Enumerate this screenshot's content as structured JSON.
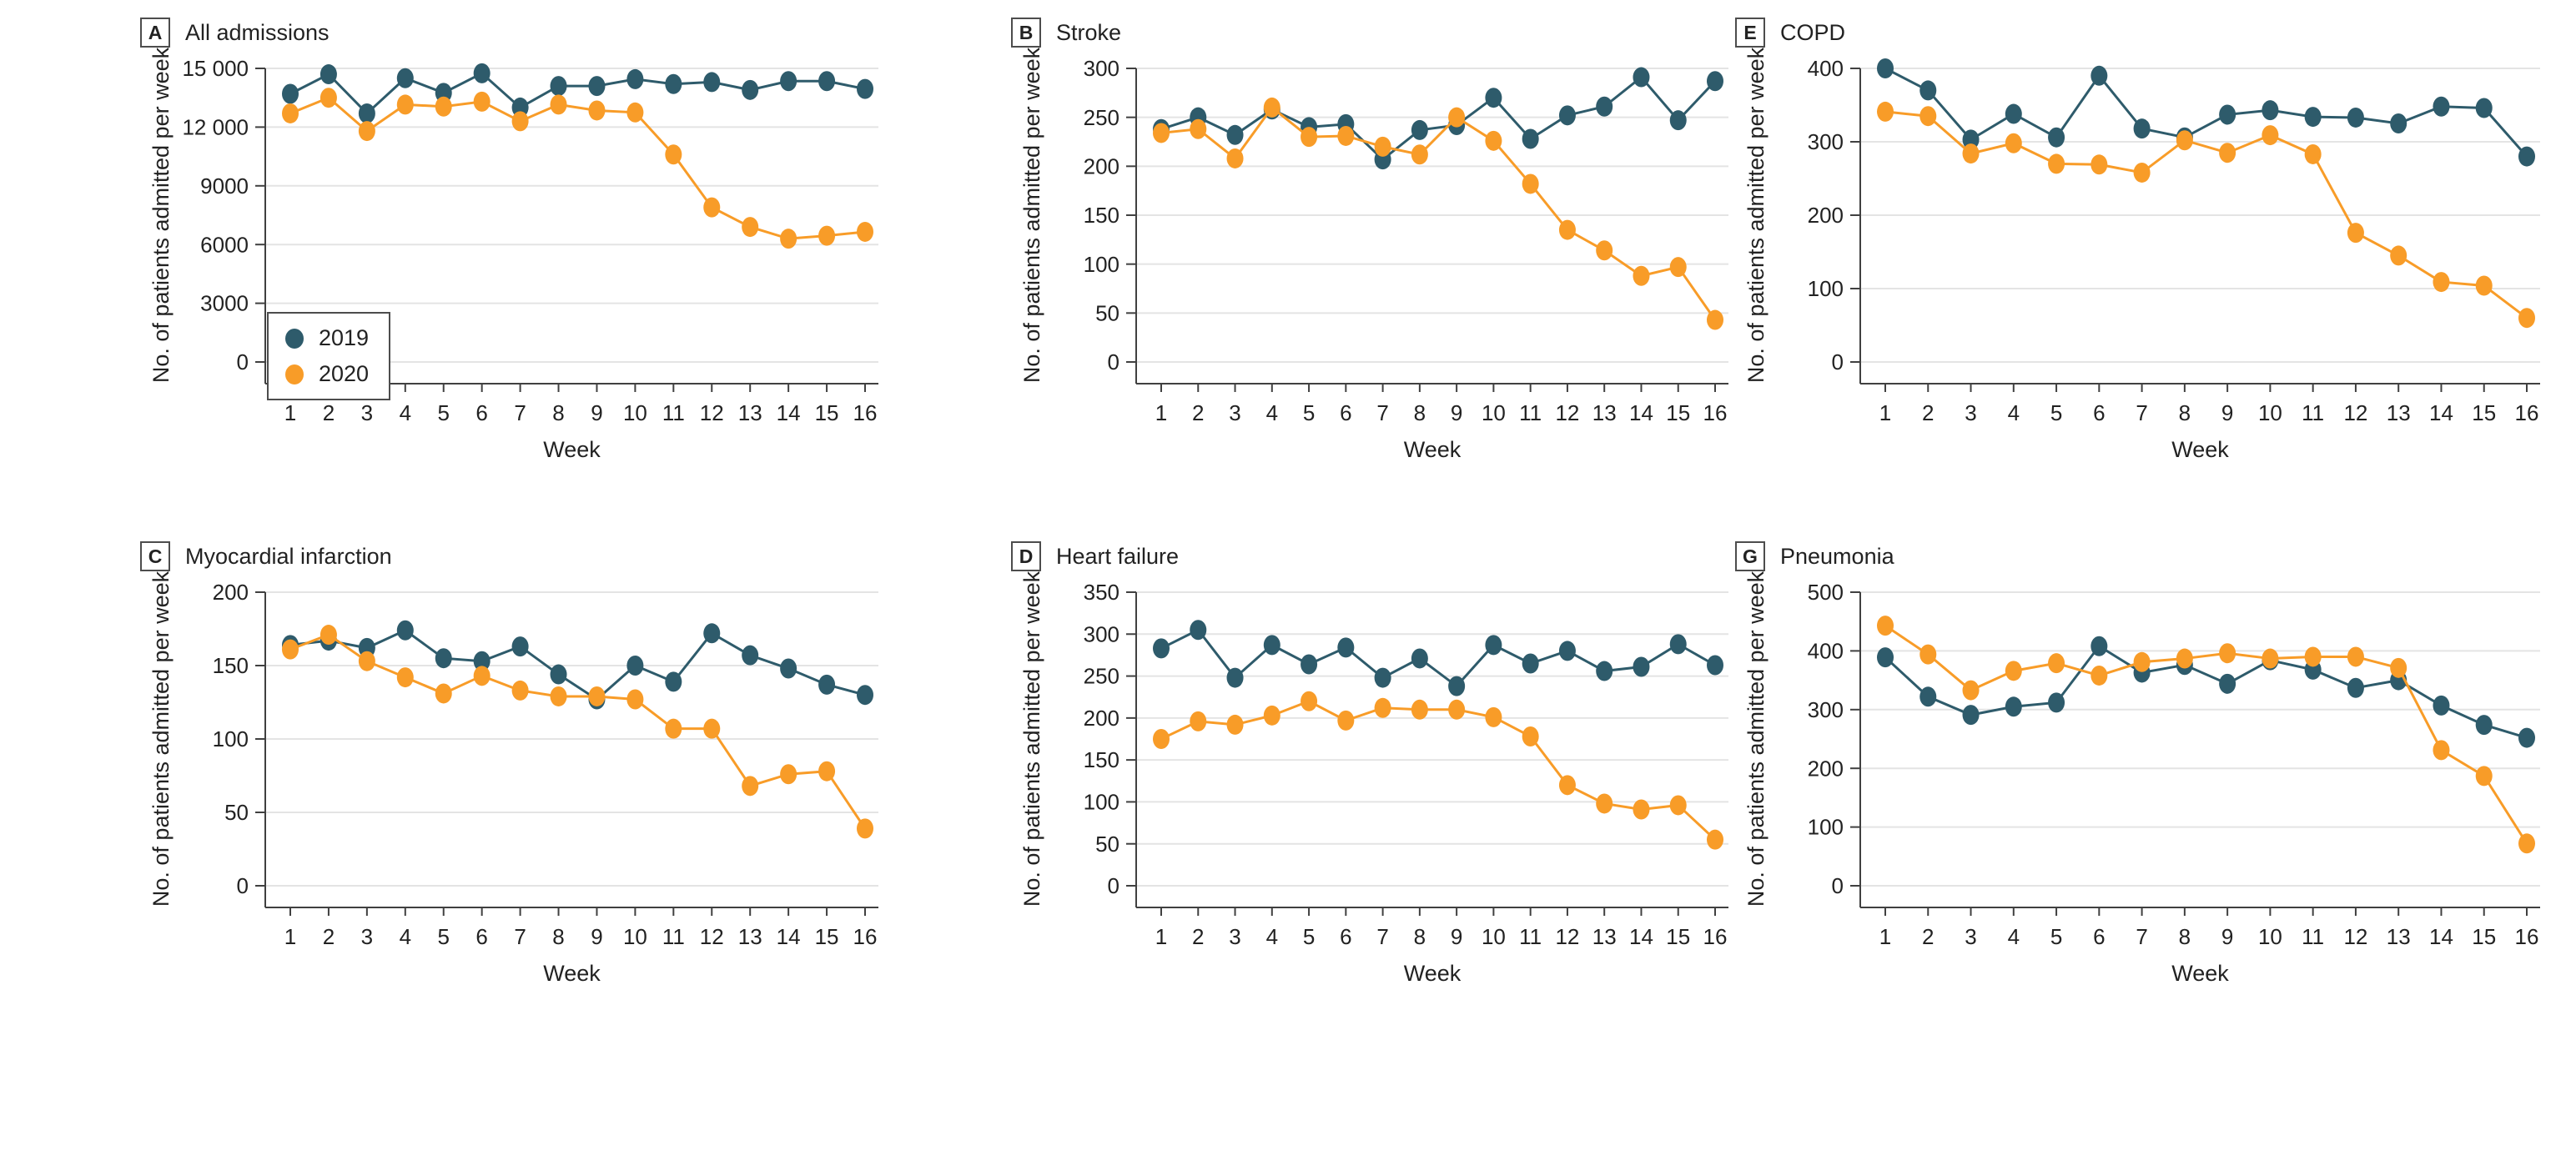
{
  "colors": {
    "s2019": "#2e5b6b",
    "s2020": "#f89c28",
    "grid": "#e4e4e4",
    "axis": "#404040",
    "text": "#222222"
  },
  "legend": {
    "items": [
      {
        "label": "2019",
        "color_key": "s2019"
      },
      {
        "label": "2020",
        "color_key": "s2020"
      }
    ]
  },
  "shared": {
    "xlabel": "Week",
    "ylabel": "No. of patients admitted per week",
    "x_ticks": [
      1,
      2,
      3,
      4,
      5,
      6,
      7,
      8,
      9,
      10,
      11,
      12,
      13,
      14,
      15,
      16
    ],
    "grid": "horizontal-on",
    "legend_position": "inside-panel-A-lower-left"
  },
  "chart_data": [
    {
      "type": "line",
      "panel_letter": "A",
      "title": "All admissions",
      "ylim": [
        0,
        15000
      ],
      "yticks": [
        {
          "v": 0,
          "label": "0"
        },
        {
          "v": 3000,
          "label": "3000"
        },
        {
          "v": 6000,
          "label": "6000"
        },
        {
          "v": 9000,
          "label": "9000"
        },
        {
          "v": 12000,
          "label": "12 000"
        },
        {
          "v": 15000,
          "label": "15 000"
        }
      ],
      "has_legend": true,
      "series": [
        {
          "name": "2019",
          "color_key": "s2019",
          "values": [
            13700,
            14700,
            12700,
            14500,
            13750,
            14750,
            13000,
            14100,
            14100,
            14450,
            14200,
            14300,
            13900,
            14350,
            14350,
            13950
          ]
        },
        {
          "name": "2020",
          "color_key": "s2020",
          "values": [
            12700,
            13500,
            11800,
            13150,
            13050,
            13300,
            12300,
            13150,
            12850,
            12750,
            10600,
            7900,
            6900,
            6300,
            6450,
            6650
          ]
        }
      ]
    },
    {
      "type": "line",
      "panel_letter": "B",
      "title": "Stroke",
      "ylim": [
        0,
        300
      ],
      "yticks": [
        {
          "v": 0,
          "label": "0"
        },
        {
          "v": 50,
          "label": "50"
        },
        {
          "v": 100,
          "label": "100"
        },
        {
          "v": 150,
          "label": "150"
        },
        {
          "v": 200,
          "label": "200"
        },
        {
          "v": 250,
          "label": "250"
        },
        {
          "v": 300,
          "label": "300"
        }
      ],
      "has_legend": false,
      "series": [
        {
          "name": "2019",
          "color_key": "s2019",
          "values": [
            238,
            250,
            232,
            258,
            240,
            243,
            207,
            237,
            242,
            270,
            228,
            252,
            261,
            291,
            247,
            287
          ]
        },
        {
          "name": "2020",
          "color_key": "s2020",
          "values": [
            234,
            238,
            208,
            260,
            230,
            231,
            220,
            212,
            250,
            226,
            182,
            135,
            114,
            88,
            97,
            43
          ]
        }
      ]
    },
    {
      "type": "line",
      "panel_letter": "E",
      "title": "COPD",
      "ylim": [
        0,
        400
      ],
      "yticks": [
        {
          "v": 0,
          "label": "0"
        },
        {
          "v": 100,
          "label": "100"
        },
        {
          "v": 200,
          "label": "200"
        },
        {
          "v": 300,
          "label": "300"
        },
        {
          "v": 400,
          "label": "400"
        }
      ],
      "has_legend": false,
      "series": [
        {
          "name": "2019",
          "color_key": "s2019",
          "values": [
            400,
            370,
            303,
            338,
            306,
            390,
            318,
            306,
            337,
            343,
            334,
            333,
            325,
            348,
            346,
            280
          ]
        },
        {
          "name": "2020",
          "color_key": "s2020",
          "values": [
            341,
            335,
            284,
            298,
            270,
            269,
            258,
            302,
            285,
            309,
            283,
            176,
            145,
            109,
            104,
            60
          ]
        }
      ]
    },
    {
      "type": "line",
      "panel_letter": "C",
      "title": "Myocardial infarction",
      "ylim": [
        0,
        200
      ],
      "yticks": [
        {
          "v": 0,
          "label": "0"
        },
        {
          "v": 50,
          "label": "50"
        },
        {
          "v": 100,
          "label": "100"
        },
        {
          "v": 150,
          "label": "150"
        },
        {
          "v": 200,
          "label": "200"
        }
      ],
      "has_legend": false,
      "series": [
        {
          "name": "2019",
          "color_key": "s2019",
          "values": [
            164,
            167,
            162,
            174,
            155,
            153,
            163,
            144,
            127,
            150,
            139,
            172,
            157,
            148,
            137,
            130
          ]
        },
        {
          "name": "2020",
          "color_key": "s2020",
          "values": [
            161,
            171,
            153,
            142,
            131,
            143,
            133,
            129,
            129,
            127,
            107,
            107,
            68,
            76,
            78,
            39
          ]
        }
      ]
    },
    {
      "type": "line",
      "panel_letter": "D",
      "title": "Heart failure",
      "ylim": [
        0,
        350
      ],
      "yticks": [
        {
          "v": 0,
          "label": "0"
        },
        {
          "v": 50,
          "label": "50"
        },
        {
          "v": 100,
          "label": "100"
        },
        {
          "v": 150,
          "label": "150"
        },
        {
          "v": 200,
          "label": "200"
        },
        {
          "v": 250,
          "label": "250"
        },
        {
          "v": 300,
          "label": "300"
        },
        {
          "v": 350,
          "label": "350"
        }
      ],
      "has_legend": false,
      "series": [
        {
          "name": "2019",
          "color_key": "s2019",
          "values": [
            283,
            305,
            248,
            287,
            264,
            284,
            248,
            271,
            238,
            287,
            265,
            280,
            256,
            261,
            288,
            263
          ]
        },
        {
          "name": "2020",
          "color_key": "s2020",
          "values": [
            175,
            196,
            192,
            203,
            220,
            197,
            212,
            210,
            210,
            201,
            178,
            120,
            98,
            91,
            96,
            55
          ]
        }
      ]
    },
    {
      "type": "line",
      "panel_letter": "G",
      "title": "Pneumonia",
      "ylim": [
        0,
        500
      ],
      "yticks": [
        {
          "v": 0,
          "label": "0"
        },
        {
          "v": 100,
          "label": "100"
        },
        {
          "v": 200,
          "label": "200"
        },
        {
          "v": 300,
          "label": "300"
        },
        {
          "v": 400,
          "label": "400"
        },
        {
          "v": 500,
          "label": "500"
        }
      ],
      "has_legend": false,
      "series": [
        {
          "name": "2019",
          "color_key": "s2019",
          "values": [
            389,
            322,
            291,
            305,
            312,
            408,
            363,
            376,
            344,
            384,
            368,
            337,
            350,
            307,
            274,
            252
          ]
        },
        {
          "name": "2020",
          "color_key": "s2020",
          "values": [
            443,
            394,
            333,
            366,
            379,
            358,
            381,
            387,
            396,
            387,
            390,
            390,
            371,
            231,
            187,
            72
          ]
        }
      ]
    }
  ]
}
